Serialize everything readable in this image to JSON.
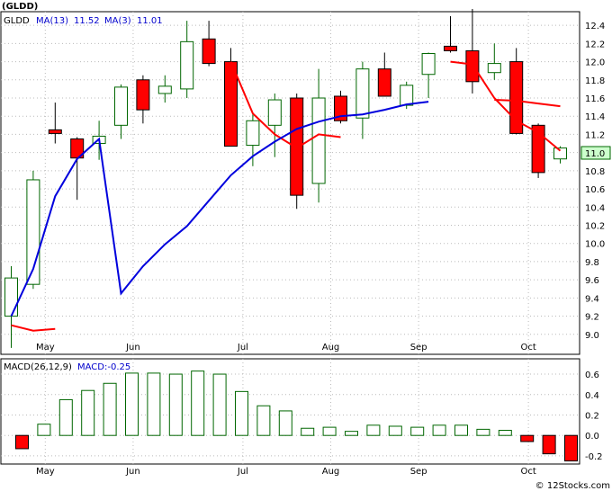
{
  "ticker": "(GLDD)",
  "watermark": "© 12Stocks.com",
  "colors": {
    "up_fill": "#ffffff",
    "up_stroke": "#006600",
    "down_fill": "#ff0000",
    "down_stroke": "#000000",
    "ma_fast": "#0000dd",
    "ma_slow": "#ff0000",
    "macd_up_stroke": "#006600",
    "macd_down_fill": "#ff0000",
    "grid": "#bbbbbb",
    "price_tag": "#ccffcc"
  },
  "price_panel": {
    "legend": {
      "symbol": "GLDD",
      "ma_fast_label": "MA(13)",
      "ma_fast_value": "11.52",
      "ma_slow_label": "MA(3)",
      "ma_slow_value": "11.01"
    },
    "last_price_tag": "11.0",
    "y_ticks": [
      "12.4",
      "12.2",
      "12.0",
      "11.8",
      "11.6",
      "11.4",
      "11.2",
      "11.0",
      "10.8",
      "10.6",
      "10.4",
      "10.2",
      "10.0",
      "9.8",
      "9.6",
      "9.4",
      "9.2",
      "9.0"
    ]
  },
  "macd_panel": {
    "label": "MACD(26,12,9)",
    "value_label": "MACD:-0.25",
    "y_ticks": [
      "0.6",
      "0.4",
      "0.2",
      "0.0",
      "-0.2"
    ]
  },
  "x_axis": {
    "labels": [
      "May",
      "Jun",
      "Jul",
      "Aug",
      "Sep",
      "Oct"
    ]
  },
  "chart_data": {
    "type": "candlestick",
    "y_range": [
      8.78,
      12.55
    ],
    "candles": [
      {
        "o": 9.2,
        "h": 9.75,
        "l": 8.85,
        "c": 9.62
      },
      {
        "o": 9.55,
        "h": 10.8,
        "l": 9.5,
        "c": 10.7
      },
      {
        "o": 11.25,
        "h": 11.55,
        "l": 11.1,
        "c": 11.21
      },
      {
        "o": 11.15,
        "h": 11.17,
        "l": 10.48,
        "c": 10.94
      },
      {
        "o": 11.1,
        "h": 11.35,
        "l": 10.92,
        "c": 11.18
      },
      {
        "o": 11.3,
        "h": 11.75,
        "l": 11.15,
        "c": 11.72
      },
      {
        "o": 11.8,
        "h": 11.85,
        "l": 11.32,
        "c": 11.47
      },
      {
        "o": 11.65,
        "h": 11.85,
        "l": 11.55,
        "c": 11.73
      },
      {
        "o": 11.7,
        "h": 12.45,
        "l": 11.6,
        "c": 12.22
      },
      {
        "o": 12.25,
        "h": 12.45,
        "l": 11.95,
        "c": 11.98
      },
      {
        "o": 12.0,
        "h": 12.15,
        "l": 11.1,
        "c": 11.07
      },
      {
        "o": 11.08,
        "h": 11.42,
        "l": 10.85,
        "c": 11.35
      },
      {
        "o": 11.3,
        "h": 11.65,
        "l": 10.95,
        "c": 11.58
      },
      {
        "o": 11.6,
        "h": 11.65,
        "l": 10.38,
        "c": 10.53
      },
      {
        "o": 10.66,
        "h": 11.92,
        "l": 10.45,
        "c": 11.6
      },
      {
        "o": 11.62,
        "h": 11.68,
        "l": 11.32,
        "c": 11.35
      },
      {
        "o": 11.38,
        "h": 12.0,
        "l": 11.15,
        "c": 11.92
      },
      {
        "o": 11.92,
        "h": 12.1,
        "l": 11.65,
        "c": 11.62
      },
      {
        "o": 11.52,
        "h": 11.78,
        "l": 11.48,
        "c": 11.74
      },
      {
        "o": 11.86,
        "h": 12.1,
        "l": 11.6,
        "c": 12.09
      },
      {
        "o": 12.17,
        "h": 12.5,
        "l": 12.1,
        "c": 12.12
      },
      {
        "o": 12.12,
        "h": 12.58,
        "l": 11.65,
        "c": 11.78
      },
      {
        "o": 11.88,
        "h": 12.2,
        "l": 11.8,
        "c": 11.98
      },
      {
        "o": 12.0,
        "h": 12.15,
        "l": 11.2,
        "c": 11.21
      },
      {
        "o": 11.3,
        "h": 11.32,
        "l": 10.72,
        "c": 10.78
      },
      {
        "o": 10.93,
        "h": 11.07,
        "l": 10.88,
        "c": 11.05
      }
    ],
    "ma_fast": [
      {
        "i": 0,
        "v": 9.2
      },
      {
        "i": 1,
        "v": 9.72
      },
      {
        "i": 2,
        "v": 10.52
      },
      {
        "i": 3,
        "v": 10.93
      },
      {
        "i": 4,
        "v": 11.15
      },
      {
        "i": 5,
        "v": 9.45
      },
      {
        "i": 6,
        "v": 9.75
      },
      {
        "i": 7,
        "v": 9.99
      },
      {
        "i": 8,
        "v": 10.19
      },
      {
        "i": 9,
        "v": 10.47
      },
      {
        "i": 10,
        "v": 10.75
      },
      {
        "i": 11,
        "v": 10.96
      },
      {
        "i": 12,
        "v": 11.12
      },
      {
        "i": 13,
        "v": 11.26
      },
      {
        "i": 14,
        "v": 11.34
      },
      {
        "i": 15,
        "v": 11.4
      },
      {
        "i": 16,
        "v": 11.42
      },
      {
        "i": 17,
        "v": 11.47
      },
      {
        "i": 18,
        "v": 11.53
      },
      {
        "i": 19,
        "v": 11.56
      }
    ],
    "ma_fast_segments": [
      {
        "from": 0,
        "to": 4
      },
      {
        "from": 4,
        "to": 13
      },
      {
        "from": 13,
        "to": 19
      }
    ],
    "ma_slow": [
      {
        "i": 0,
        "v": 9.1
      },
      {
        "i": 1,
        "v": 9.04
      },
      {
        "i": 2,
        "v": 9.06
      },
      {
        "i": 10,
        "v": 12.0
      },
      {
        "i": 11,
        "v": 11.43
      },
      {
        "i": 12,
        "v": 11.2
      },
      {
        "i": 13,
        "v": 11.05
      },
      {
        "i": 14,
        "v": 11.2
      },
      {
        "i": 15,
        "v": 11.17
      },
      {
        "i": 20,
        "v": 12.0
      },
      {
        "i": 21,
        "v": 11.97
      },
      {
        "i": 22,
        "v": 11.6
      },
      {
        "i": 23,
        "v": 11.35
      },
      {
        "i": 24,
        "v": 11.22
      },
      {
        "i": 25,
        "v": 11.02
      }
    ],
    "ma_slow_extra": [
      {
        "i": 22,
        "v": 11.58
      },
      {
        "i": 23,
        "v": 11.57
      },
      {
        "i": 24,
        "v": 11.54
      },
      {
        "i": 25,
        "v": 11.51
      }
    ],
    "macd": {
      "y_range": [
        -0.28,
        0.75
      ],
      "values": [
        -0.13,
        0.11,
        0.35,
        0.44,
        0.51,
        0.61,
        0.61,
        0.6,
        0.63,
        0.6,
        0.43,
        0.29,
        0.24,
        0.07,
        0.08,
        0.04,
        0.1,
        0.09,
        0.08,
        0.1,
        0.1,
        0.06,
        0.05,
        -0.06,
        -0.18,
        -0.25
      ]
    },
    "month_positions": [
      {
        "label": "May",
        "i": 1
      },
      {
        "label": "Jun",
        "i": 5
      },
      {
        "label": "Jul",
        "i": 10
      },
      {
        "label": "Aug",
        "i": 14
      },
      {
        "label": "Sep",
        "i": 18
      },
      {
        "label": "Oct",
        "i": 23
      }
    ]
  }
}
